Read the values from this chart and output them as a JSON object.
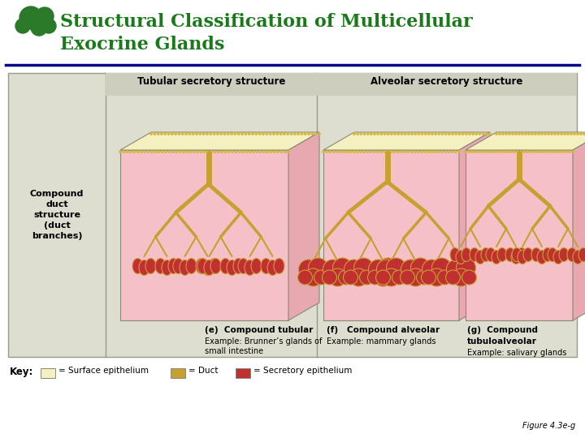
{
  "title_line1": "Structural Classification of Multicellular",
  "title_line2": "Exocrine Glands",
  "title_color": "#1a7a1a",
  "title_fontsize": 16,
  "bg_color": "#ffffff",
  "panel_bg": "#deded0",
  "header_line_color": "#00008b",
  "figure_label": "Figure 4.3e-g",
  "tubular_header": "Tubular secretory structure",
  "alveolar_header": "Alveolar secretory structure",
  "gland_e_label": "(e)  Compound tubular",
  "gland_e_example": "Example: Brunner’s glands of\nsmall intestine",
  "gland_f_label": "(f)   Compound alveolar",
  "gland_f_example": "Example: mammary glands",
  "gland_g_label": "(g)  Compound",
  "gland_g_label2": "tubuloalveolar",
  "gland_g_example": "Example: salivary glands",
  "key_text": "Key:",
  "key_surface": "= Surface epithelium",
  "key_duct": "= Duct",
  "key_secretory": "= Secretory epithelium",
  "surface_color": "#f5f0c0",
  "duct_color": "#c8a030",
  "secretory_color": "#c03030",
  "body_color": "#f5c0c8",
  "body_color_dark": "#e8a8b0",
  "panel_outline": "#999988",
  "top_surface_dotted": "#d4b840"
}
